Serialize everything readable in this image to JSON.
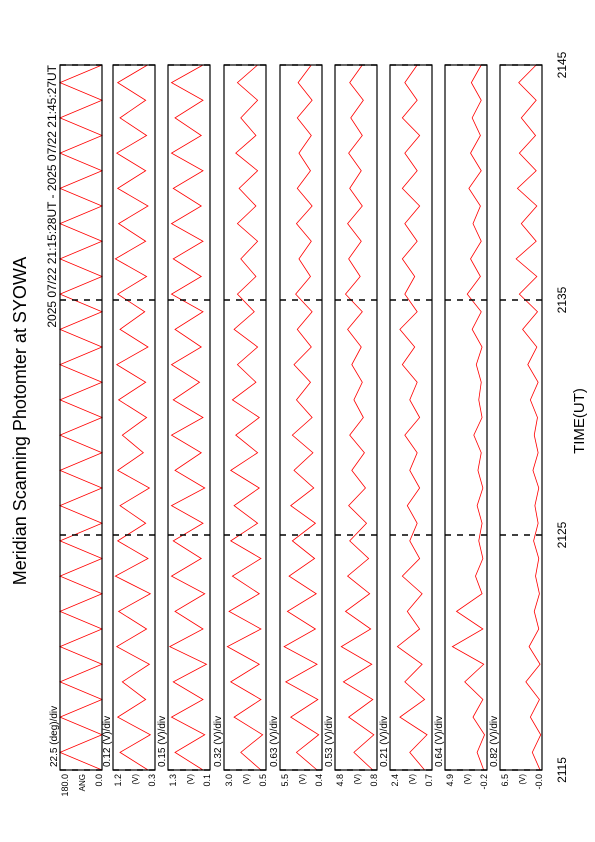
{
  "chart_data": {
    "type": "line",
    "title": "Meridian Scanning Photomter at SYOWA",
    "subtitle": "2025 07/22 21:15:28UT - 2025 07/22 21:45:27UT",
    "xlabel": "TIME(UT)",
    "xlim": [
      2115,
      2145
    ],
    "xticks": [
      2115,
      2125,
      2135,
      2145
    ],
    "x": [
      2115,
      2115.75,
      2116.5,
      2117.25,
      2118,
      2118.75,
      2119.5,
      2120.25,
      2121,
      2121.75,
      2122.5,
      2123.25,
      2124,
      2124.75,
      2125.5,
      2126.25,
      2127,
      2127.75,
      2128.5,
      2129.25,
      2130,
      2130.75,
      2131.5,
      2132.25,
      2133,
      2133.75,
      2134.5,
      2135.25,
      2136,
      2136.75,
      2137.5,
      2138.25,
      2139,
      2139.75,
      2140.5,
      2141.25,
      2142,
      2142.75,
      2143.5,
      2144.25,
      2145
    ],
    "panels": [
      {
        "scale_label": "22.5 (deg)/div",
        "unit": "ANG",
        "color": "#ff0000",
        "ylim": [
          0,
          180
        ],
        "yticks": [
          {
            "value": 180,
            "label": "180.0"
          },
          {
            "value": 0,
            "label": "0.0"
          }
        ],
        "values": [
          0,
          180,
          0,
          180,
          0,
          180,
          0,
          180,
          0,
          180,
          0,
          180,
          0,
          180,
          0,
          180,
          0,
          180,
          0,
          180,
          0,
          180,
          0,
          180,
          0,
          180,
          0,
          180,
          0,
          180,
          0,
          180,
          0,
          180,
          0,
          180,
          0,
          180,
          0,
          180,
          0
        ]
      },
      {
        "scale_label": "0.12 (V)/div",
        "unit": "(V)",
        "color": "#ff0000",
        "ylim": [
          0.3,
          1.2
        ],
        "yticks": [
          1.2,
          0.3
        ],
        "values": [
          0.45,
          1.05,
          0.4,
          1.1,
          0.5,
          1.0,
          0.42,
          1.12,
          0.48,
          1.08,
          0.4,
          1.15,
          0.45,
          1.1,
          0.5,
          1.05,
          0.42,
          1.1,
          0.55,
          1.0,
          0.48,
          1.08,
          0.5,
          1.12,
          0.45,
          1.05,
          0.52,
          1.1,
          0.48,
          1.15,
          0.5,
          1.08,
          0.45,
          1.1,
          0.5,
          1.12,
          0.48,
          1.05,
          0.5,
          1.1,
          0.46
        ]
      },
      {
        "scale_label": "0.15 (V)/div",
        "unit": "(V)",
        "color": "#ff0000",
        "ylim": [
          0.1,
          1.3
        ],
        "yticks": [
          1.3,
          0.1
        ],
        "values": [
          0.3,
          1.1,
          0.25,
          1.2,
          0.3,
          1.15,
          0.2,
          1.25,
          0.3,
          1.1,
          0.25,
          1.2,
          0.35,
          1.15,
          0.3,
          1.2,
          0.25,
          1.1,
          0.35,
          1.2,
          0.3,
          1.15,
          0.4,
          1.2,
          0.35,
          1.1,
          0.3,
          1.2,
          0.35,
          1.15,
          0.3,
          1.2,
          0.35,
          1.15,
          0.3,
          1.2,
          0.35,
          1.1,
          0.3,
          1.2,
          0.3
        ]
      },
      {
        "scale_label": "0.32 (V)/div",
        "unit": "(V)",
        "color": "#ff0000",
        "ylim": [
          0.5,
          3.0
        ],
        "yticks": [
          {
            "value": 3.0,
            "label": "3.0"
          },
          0.5
        ],
        "values": [
          0.8,
          2.0,
          0.7,
          2.4,
          0.8,
          2.6,
          0.9,
          2.8,
          0.8,
          2.7,
          0.9,
          2.5,
          0.8,
          2.6,
          1.0,
          2.4,
          0.9,
          2.6,
          1.0,
          2.3,
          0.9,
          2.5,
          1.1,
          2.2,
          1.0,
          2.4,
          1.2,
          2.2,
          1.1,
          2.0,
          1.0,
          2.2,
          1.1,
          2.1,
          1.0,
          2.3,
          1.1,
          2.0,
          1.0,
          2.2,
          1.0
        ]
      },
      {
        "scale_label": "0.63 (V)/div",
        "unit": "(V)",
        "color": "#ff0000",
        "ylim": [
          0.4,
          5.5
        ],
        "yticks": [
          5.5,
          0.4
        ],
        "values": [
          1.0,
          3.5,
          0.8,
          4.2,
          0.9,
          4.8,
          1.0,
          5.0,
          1.2,
          4.6,
          1.1,
          4.4,
          1.3,
          4.0,
          1.2,
          4.2,
          1.4,
          3.8,
          1.5,
          4.0,
          1.6,
          3.5,
          1.8,
          3.8,
          1.7,
          3.4,
          1.6,
          3.6,
          1.8,
          3.2,
          1.7,
          3.5,
          1.6,
          3.4,
          1.8,
          3.2,
          1.7,
          3.4,
          1.6,
          3.3,
          1.7
        ]
      },
      {
        "scale_label": "0.53 (V)/div",
        "unit": "(V)",
        "color": "#ff0000",
        "ylim": [
          0.8,
          4.8
        ],
        "yticks": [
          4.8,
          0.8
        ],
        "values": [
          1.2,
          3.0,
          1.1,
          3.5,
          1.2,
          4.0,
          1.3,
          4.2,
          1.4,
          3.8,
          1.5,
          3.6,
          1.6,
          3.4,
          1.8,
          3.5,
          1.9,
          3.2,
          2.0,
          3.4,
          2.1,
          3.0,
          2.2,
          3.2,
          2.3,
          3.6,
          2.2,
          3.8,
          2.4,
          3.5,
          2.3,
          3.6,
          2.2,
          3.4,
          2.3,
          3.5,
          2.2,
          3.3,
          2.1,
          3.4,
          2.2
        ]
      },
      {
        "scale_label": "0.21 (V)/div",
        "unit": "(V)",
        "color": "#ff0000",
        "ylim": [
          0.7,
          2.4
        ],
        "yticks": [
          2.4,
          0.7
        ],
        "values": [
          1.0,
          1.6,
          0.9,
          2.0,
          1.0,
          1.8,
          1.1,
          2.1,
          1.2,
          1.7,
          1.1,
          1.9,
          1.2,
          1.6,
          1.3,
          1.7,
          1.2,
          1.6,
          1.3,
          1.8,
          1.2,
          1.6,
          1.3,
          1.9,
          1.4,
          2.0,
          1.3,
          1.8,
          1.4,
          1.9,
          1.3,
          1.8,
          1.2,
          1.9,
          1.3,
          1.8,
          1.2,
          1.9,
          1.3,
          1.8,
          1.3
        ]
      },
      {
        "scale_label": "0.64 (V)/div",
        "unit": "(V)",
        "color": "#ff0000",
        "ylim": [
          -0.2,
          4.9
        ],
        "yticks": [
          4.9,
          -0.2
        ],
        "values": [
          0.2,
          1.0,
          0.1,
          1.5,
          0.3,
          2.5,
          0.2,
          4.0,
          0.3,
          3.5,
          0.4,
          1.2,
          0.3,
          0.8,
          0.4,
          1.0,
          0.3,
          0.9,
          0.5,
          1.4,
          0.4,
          0.8,
          0.5,
          1.1,
          0.4,
          1.6,
          0.5,
          2.2,
          0.6,
          1.8,
          0.5,
          1.5,
          0.6,
          2.0,
          0.5,
          1.8,
          0.6,
          1.6,
          0.5,
          1.7,
          0.5
        ]
      },
      {
        "scale_label": "0.82 (V)/div",
        "unit": "(V)",
        "color": "#ff0000",
        "ylim": [
          0,
          6.5
        ],
        "yticks": [
          6.5,
          {
            "value": 0,
            "label": "-0.0"
          }
        ],
        "values": [
          0.3,
          1.5,
          0.2,
          1.8,
          0.4,
          2.5,
          0.3,
          2.0,
          0.5,
          1.2,
          0.4,
          1.0,
          0.5,
          1.3,
          0.6,
          1.1,
          0.5,
          1.4,
          0.6,
          1.2,
          0.7,
          1.8,
          0.6,
          2.2,
          0.8,
          3.0,
          0.7,
          3.5,
          0.8,
          4.0,
          0.9,
          3.2,
          0.8,
          3.8,
          0.9,
          3.5,
          1.0,
          3.2,
          0.9,
          3.6,
          0.9
        ]
      }
    ]
  }
}
